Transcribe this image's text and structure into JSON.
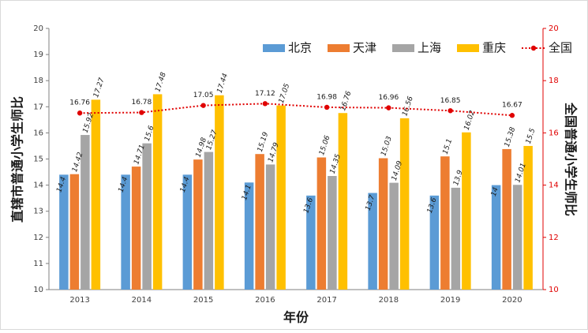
{
  "chart_data": {
    "type": "bar",
    "title": "",
    "xlabel": "年份",
    "ylabel": "直辖市普通小学生师比",
    "y2label": "全国普通小学生师比",
    "categories": [
      "2013",
      "2014",
      "2015",
      "2016",
      "2017",
      "2018",
      "2019",
      "2020"
    ],
    "ylim": [
      10,
      20
    ],
    "y2lim": [
      10,
      20
    ],
    "yticks": [
      "10",
      "11",
      "12",
      "13",
      "14",
      "15",
      "16",
      "17",
      "18",
      "19",
      "20"
    ],
    "y2ticks": [
      "10",
      "12",
      "14",
      "16",
      "18",
      "20"
    ],
    "series": [
      {
        "name": "北京",
        "color": "#5B9BD5",
        "values": [
          14.4,
          14.4,
          14.4,
          14.1,
          13.6,
          13.7,
          13.6,
          14
        ],
        "labels": [
          "14.4",
          "14.4",
          "14.4",
          "14.1",
          "13.6",
          "13.7",
          "13.6",
          "14"
        ]
      },
      {
        "name": "天津",
        "color": "#ED7D31",
        "values": [
          14.42,
          14.71,
          14.98,
          15.19,
          15.06,
          15.03,
          15.1,
          15.38
        ],
        "labels": [
          "14.42",
          "14.71",
          "14.98",
          "15.19",
          "15.06",
          "15.03",
          "15.1",
          "15.38"
        ]
      },
      {
        "name": "上海",
        "color": "#A5A5A5",
        "values": [
          15.92,
          15.6,
          15.27,
          14.79,
          14.35,
          14.09,
          13.9,
          14.01
        ],
        "labels": [
          "15.92",
          "15.6",
          "15.27",
          "14.79",
          "14.35",
          "14.09",
          "13.9",
          "14.01"
        ]
      },
      {
        "name": "重庆",
        "color": "#FFC000",
        "values": [
          17.27,
          17.48,
          17.44,
          17.05,
          16.76,
          16.56,
          16.02,
          15.5
        ],
        "labels": [
          "17.27",
          "17.48",
          "17.44",
          "17.05",
          "16.76",
          "16.56",
          "16.02",
          "15.5"
        ]
      }
    ],
    "line_series": {
      "name": "全国",
      "color": "#E00000",
      "axis": "right",
      "values": [
        16.76,
        16.78,
        17.05,
        17.12,
        16.98,
        16.96,
        16.85,
        16.67
      ],
      "labels": [
        "16.76",
        "16.78",
        "17.05",
        "17.12",
        "16.98",
        "16.96",
        "16.85",
        "16.67"
      ]
    },
    "legend": "top-right",
    "grid": false
  }
}
